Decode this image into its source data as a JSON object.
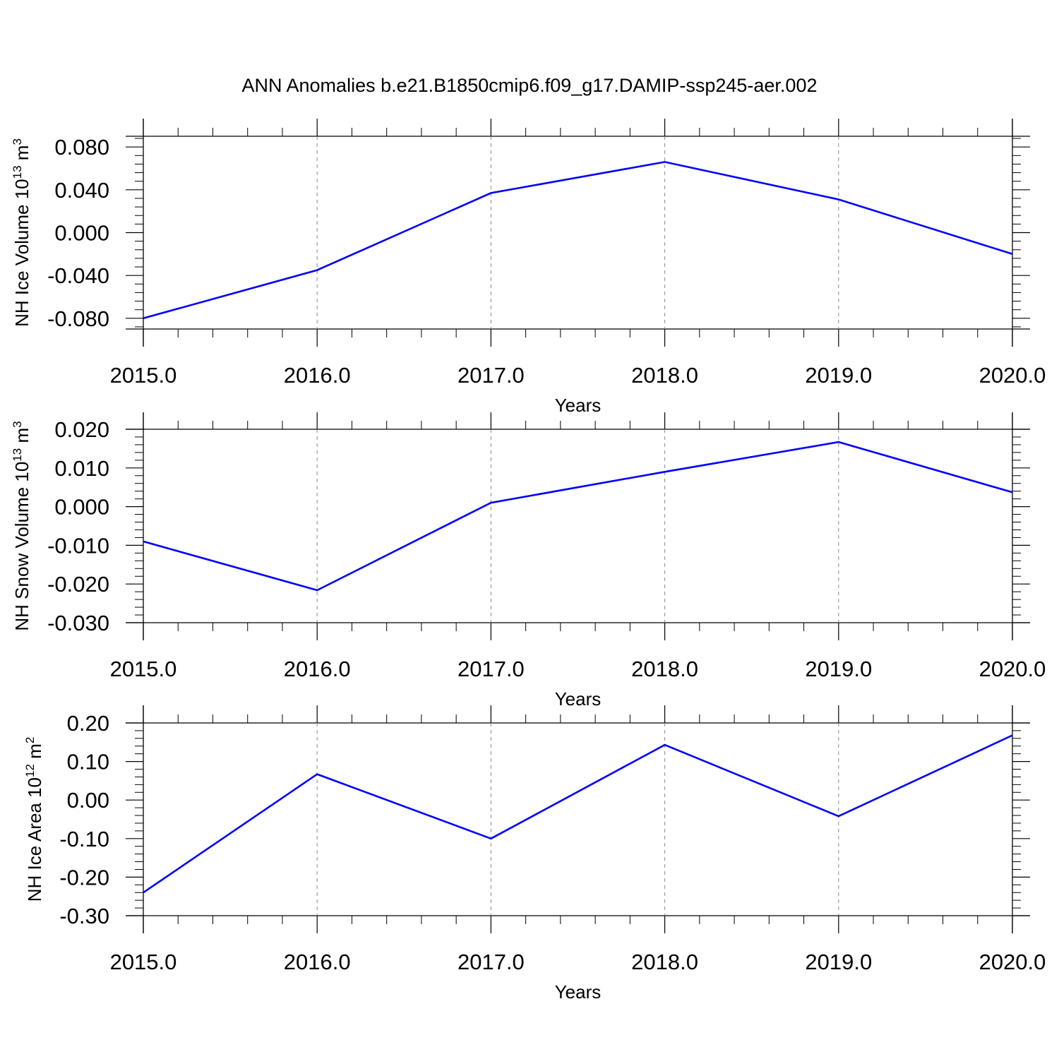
{
  "figure": {
    "title": "ANN Anomalies b.e21.B1850cmip6.f09_g17.DAMIP-ssp245-aer.002"
  },
  "chart_data": [
    {
      "type": "line",
      "xlabel": "Years",
      "ylabel_main": "NH Ice Volume 10",
      "ylabel_exp": "13",
      "ylabel_unit": " m",
      "ylabel_unit_exp": "3",
      "xlim": [
        2015.0,
        2020.0
      ],
      "ylim": [
        -0.09,
        0.09
      ],
      "x_ticks": [
        "2015.0",
        "2016.0",
        "2017.0",
        "2018.0",
        "2019.0",
        "2020.0"
      ],
      "y_ticks": [
        "-0.080",
        "-0.040",
        "0.000",
        "0.040",
        "0.080"
      ],
      "y_tick_values": [
        -0.08,
        -0.04,
        0.0,
        0.04,
        0.08
      ],
      "y_minor_step": 0.008,
      "x": [
        2015,
        2016,
        2017,
        2018,
        2019,
        2020
      ],
      "series": [
        {
          "values": [
            -0.08,
            -0.035,
            0.037,
            0.066,
            0.031,
            -0.02
          ]
        }
      ],
      "grid": "vertical dashed at major x ticks"
    },
    {
      "type": "line",
      "xlabel": "Years",
      "ylabel_main": "NH Snow Volume 10",
      "ylabel_exp": "13",
      "ylabel_unit": " m",
      "ylabel_unit_exp": "3",
      "xlim": [
        2015.0,
        2020.0
      ],
      "ylim": [
        -0.03,
        0.02
      ],
      "x_ticks": [
        "2015.0",
        "2016.0",
        "2017.0",
        "2018.0",
        "2019.0",
        "2020.0"
      ],
      "y_ticks": [
        "-0.030",
        "-0.020",
        "-0.010",
        "0.000",
        "0.010",
        "0.020"
      ],
      "y_tick_values": [
        -0.03,
        -0.02,
        -0.01,
        0.0,
        0.01,
        0.02
      ],
      "y_minor_step": 0.002,
      "x": [
        2015,
        2016,
        2017,
        2018,
        2019,
        2020
      ],
      "series": [
        {
          "values": [
            -0.009,
            -0.0216,
            0.001,
            0.009,
            0.0167,
            0.0037
          ]
        }
      ],
      "grid": "vertical dashed at major x ticks"
    },
    {
      "type": "line",
      "xlabel": "Years",
      "ylabel_main": "NH Ice Area 10",
      "ylabel_exp": "12",
      "ylabel_unit": " m",
      "ylabel_unit_exp": "2",
      "xlim": [
        2015.0,
        2020.0
      ],
      "ylim": [
        -0.3,
        0.2
      ],
      "x_ticks": [
        "2015.0",
        "2016.0",
        "2017.0",
        "2018.0",
        "2019.0",
        "2020.0"
      ],
      "y_ticks": [
        "-0.30",
        "-0.20",
        "-0.10",
        "0.00",
        "0.10",
        "0.20"
      ],
      "y_tick_values": [
        -0.3,
        -0.2,
        -0.1,
        0.0,
        0.1,
        0.2
      ],
      "y_minor_step": 0.02,
      "x": [
        2015,
        2016,
        2017,
        2018,
        2019,
        2020
      ],
      "series": [
        {
          "values": [
            -0.24,
            0.067,
            -0.1,
            0.143,
            -0.042,
            0.168
          ]
        }
      ],
      "grid": "vertical dashed at major x ticks"
    }
  ],
  "colors": {
    "line": "#0000ff",
    "axis": "#000000",
    "grid": "#888888"
  }
}
